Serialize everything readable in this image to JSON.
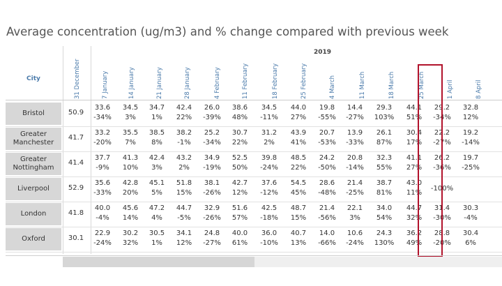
{
  "title": "Average concentration (ug/m3) and % change compared with previous week",
  "year": "2019",
  "city_header": "City",
  "dates": [
    "31 December",
    "7 January",
    "14 January",
    "21 January",
    "28 January",
    "4 February",
    "11 February",
    "18 February",
    "25 February",
    "4 March",
    "11 March",
    "18 March",
    "25 March",
    "1 April",
    "8 April"
  ],
  "highlight_color": "#b1122b",
  "rows": [
    {
      "city": "Bristol",
      "base": "50.9",
      "vals": [
        "33.6",
        "34.5",
        "34.7",
        "42.4",
        "26.0",
        "38.6",
        "34.5",
        "44.0",
        "19.8",
        "14.4",
        "29.3",
        "44.1",
        "29.2",
        "32.8"
      ],
      "pcts": [
        "-34%",
        "3%",
        "1%",
        "22%",
        "-39%",
        "48%",
        "-11%",
        "27%",
        "-55%",
        "-27%",
        "103%",
        "51%",
        "-34%",
        "12%"
      ]
    },
    {
      "city": "Greater Manchester",
      "base": "41.7",
      "vals": [
        "33.2",
        "35.5",
        "38.5",
        "38.2",
        "25.2",
        "30.7",
        "31.2",
        "43.9",
        "20.7",
        "13.9",
        "26.1",
        "30.4",
        "22.2",
        "19.2"
      ],
      "pcts": [
        "-20%",
        "7%",
        "8%",
        "-1%",
        "-34%",
        "22%",
        "2%",
        "41%",
        "-53%",
        "-33%",
        "87%",
        "17%",
        "-27%",
        "-14%"
      ]
    },
    {
      "city": "Greater Nottingham",
      "base": "41.4",
      "vals": [
        "37.7",
        "41.3",
        "42.4",
        "43.2",
        "34.9",
        "52.5",
        "39.8",
        "48.5",
        "24.2",
        "20.8",
        "32.3",
        "41.1",
        "26.2",
        "19.7"
      ],
      "pcts": [
        "-9%",
        "10%",
        "3%",
        "2%",
        "-19%",
        "50%",
        "-24%",
        "22%",
        "-50%",
        "-14%",
        "55%",
        "27%",
        "-36%",
        "-25%"
      ]
    },
    {
      "city": "Liverpool",
      "base": "52.9",
      "vals": [
        "35.6",
        "42.8",
        "45.1",
        "51.8",
        "38.1",
        "42.7",
        "37.6",
        "54.5",
        "28.6",
        "21.4",
        "38.7",
        "43.0",
        "-100%",
        ""
      ],
      "pcts": [
        "-33%",
        "20%",
        "5%",
        "15%",
        "-26%",
        "12%",
        "-12%",
        "45%",
        "-48%",
        "-25%",
        "81%",
        "11%",
        "",
        ""
      ]
    },
    {
      "city": "London",
      "base": "41.8",
      "vals": [
        "40.0",
        "45.6",
        "47.2",
        "44.7",
        "32.9",
        "51.6",
        "42.5",
        "48.7",
        "21.4",
        "22.1",
        "34.0",
        "44.7",
        "31.4",
        "30.3"
      ],
      "pcts": [
        "-4%",
        "14%",
        "4%",
        "-5%",
        "-26%",
        "57%",
        "-18%",
        "15%",
        "-56%",
        "3%",
        "54%",
        "32%",
        "-30%",
        "-4%"
      ]
    },
    {
      "city": "Oxford",
      "base": "30.1",
      "vals": [
        "22.9",
        "30.2",
        "30.5",
        "34.1",
        "24.8",
        "40.0",
        "36.0",
        "40.7",
        "14.0",
        "10.6",
        "24.3",
        "36.2",
        "28.8",
        "30.4"
      ],
      "pcts": [
        "-24%",
        "32%",
        "1%",
        "12%",
        "-27%",
        "61%",
        "-10%",
        "13%",
        "-66%",
        "-24%",
        "130%",
        "49%",
        "-20%",
        "6%"
      ]
    }
  ]
}
